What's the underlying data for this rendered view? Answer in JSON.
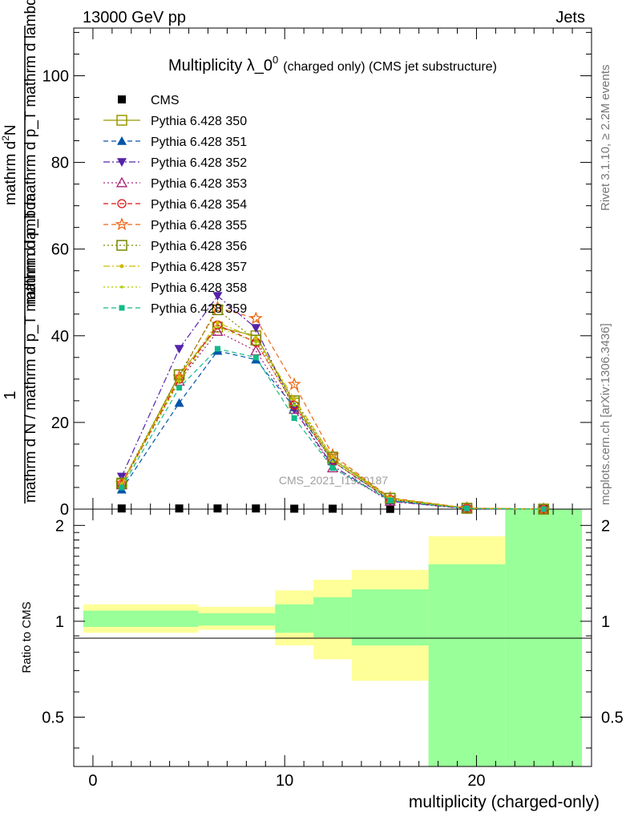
{
  "header": {
    "left": "13000 GeV pp",
    "right": "Jets"
  },
  "side_labels": {
    "rivet": "Rivet 3.1.10, ≥ 2.2M events",
    "mcplots": "mcplots.cern.ch [arXiv:1306.3436]"
  },
  "watermark": "CMS_2021_I1920187",
  "chart_data": [
    {
      "type": "line",
      "title": "Multiplicity λ_0",
      "title_sup": "0",
      "subtitle": "(charged only) (CMS jet substructure)",
      "ylabel_top": "1",
      "ylabel_top_den": "mathrm d N / mathrm d p_T mathrm d lambda",
      "ylabel_num": "mathrm d",
      "ylabel_num_sup": "2",
      "ylabel_num_tail": "N",
      "ylabel_den": "mathrm d p_T mathrm d p_T mathrm d lambda",
      "xlim": [
        -1,
        26
      ],
      "ylim": [
        0,
        111
      ],
      "yticks": [
        20,
        40,
        60,
        80,
        100
      ],
      "x": [
        1.5,
        4.5,
        6.5,
        8.5,
        10.5,
        12.5,
        15.5,
        19.5,
        23.5
      ],
      "series": [
        {
          "name": "CMS",
          "color": "#000000",
          "marker": "square-filled",
          "dash": "none",
          "values": [
            0.15,
            0.15,
            0.15,
            0.15,
            0.1,
            0.1,
            0.05,
            0.02,
            0.01
          ]
        },
        {
          "name": "Pythia 6.428 350",
          "color": "#999900",
          "marker": "square-open",
          "dash": "solid",
          "values": [
            5.8,
            31.0,
            42.0,
            40.0,
            24.5,
            11.5,
            2.5,
            0.2,
            0.0
          ]
        },
        {
          "name": "Pythia 6.428 351",
          "color": "#0055aa",
          "marker": "triangle-up-filled",
          "dash": "dashed",
          "values": [
            4.5,
            24.5,
            36.5,
            34.5,
            23.5,
            11.0,
            2.0,
            0.15,
            0.0
          ]
        },
        {
          "name": "Pythia 6.428 352",
          "color": "#5522aa",
          "marker": "triangle-down-filled",
          "dash": "dashdot",
          "values": [
            7.5,
            37.0,
            49.2,
            41.8,
            23.0,
            10.0,
            1.8,
            0.1,
            0.0
          ]
        },
        {
          "name": "Pythia 6.428 353",
          "color": "#aa2277",
          "marker": "triangle-up-open",
          "dash": "dotted",
          "values": [
            5.6,
            29.5,
            41.0,
            36.5,
            23.0,
            9.5,
            1.8,
            0.15,
            0.0
          ]
        },
        {
          "name": "Pythia 6.428 354",
          "color": "#dd1111",
          "marker": "circle-open",
          "dash": "dashed",
          "values": [
            5.7,
            30.0,
            42.5,
            38.5,
            24.0,
            11.0,
            2.2,
            0.2,
            0.0
          ]
        },
        {
          "name": "Pythia 6.428 355",
          "color": "#ee6611",
          "marker": "star-open",
          "dash": "dashed",
          "values": [
            6.0,
            30.5,
            46.5,
            44.0,
            28.8,
            12.5,
            2.6,
            0.25,
            0.0
          ]
        },
        {
          "name": "Pythia 6.428 356",
          "color": "#778800",
          "marker": "square-open",
          "dash": "dotted",
          "values": [
            6.0,
            31.0,
            46.0,
            39.0,
            25.0,
            12.0,
            2.5,
            0.2,
            0.0
          ]
        },
        {
          "name": "Pythia 6.428 357",
          "color": "#ccbb00",
          "marker": "dot",
          "dash": "dashdot",
          "values": [
            5.8,
            30.5,
            43.0,
            39.5,
            25.5,
            12.0,
            2.5,
            0.2,
            0.0
          ]
        },
        {
          "name": "Pythia 6.428 358",
          "color": "#aacc00",
          "marker": "dot-small",
          "dash": "dotted",
          "values": [
            5.5,
            29.5,
            42.0,
            38.5,
            24.0,
            11.0,
            2.2,
            0.18,
            0.0
          ]
        },
        {
          "name": "Pythia 6.428 359",
          "color": "#11bb88",
          "marker": "square-small-filled",
          "dash": "dashed",
          "values": [
            5.0,
            28.0,
            37.0,
            35.0,
            21.0,
            9.5,
            2.0,
            0.15,
            0.0
          ]
        }
      ]
    },
    {
      "type": "area",
      "ylabel": "Ratio to CMS",
      "xlabel": "multiplicity (charged-only)",
      "xlim": [
        -1,
        26
      ],
      "ylim": [
        0.35,
        2.25
      ],
      "xticks": [
        0,
        10,
        20
      ],
      "yticks": [
        0.5,
        1,
        2
      ],
      "bins": [
        {
          "x0": -0.5,
          "x1": 5.5,
          "yellow": [
            0.92,
            1.13
          ],
          "green": [
            0.96,
            1.08
          ]
        },
        {
          "x0": 5.5,
          "x1": 9.5,
          "yellow": [
            0.94,
            1.11
          ],
          "green": [
            0.97,
            1.06
          ]
        },
        {
          "x0": 9.5,
          "x1": 11.5,
          "yellow": [
            0.84,
            1.25
          ],
          "green": [
            0.92,
            1.13
          ]
        },
        {
          "x0": 11.5,
          "x1": 13.5,
          "yellow": [
            0.76,
            1.35
          ],
          "green": [
            0.89,
            1.19
          ]
        },
        {
          "x0": 13.5,
          "x1": 17.5,
          "yellow": [
            0.65,
            1.45
          ],
          "green": [
            0.84,
            1.26
          ]
        },
        {
          "x0": 17.5,
          "x1": 21.5,
          "yellow": [
            0.35,
            1.85
          ],
          "green": [
            0.35,
            1.51
          ]
        },
        {
          "x0": 21.5,
          "x1": 25.5,
          "yellow": [
            0.35,
            2.25
          ],
          "green": [
            0.35,
            2.25
          ]
        }
      ],
      "yellow_color": "#ffff99",
      "green_color": "#99ff99"
    }
  ]
}
